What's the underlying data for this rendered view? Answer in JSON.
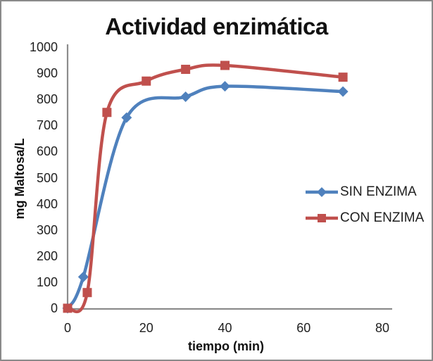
{
  "frame": {
    "background": "#FFFFFF",
    "border_color": "#8A8A8A"
  },
  "chart_data": {
    "type": "line",
    "title": "Actividad enzimática",
    "xlabel": "tiempo (min)",
    "ylabel": "mg Maltosa/L",
    "xlim": [
      0,
      80
    ],
    "ylim": [
      0,
      1000
    ],
    "x_ticks": [
      0,
      20,
      40,
      60,
      80
    ],
    "y_ticks": [
      0,
      100,
      200,
      300,
      400,
      500,
      600,
      700,
      800,
      900,
      1000
    ],
    "grid": false,
    "smooth_lines": true,
    "legend_position": "middle-right",
    "axis_color": "#8C8C8C",
    "text_color": "#1F1F1F",
    "series": [
      {
        "name": "SIN ENZIMA",
        "color": "#4F81BD",
        "marker": "diamond",
        "points": [
          [
            0,
            0
          ],
          [
            4,
            120
          ],
          [
            15,
            730
          ],
          [
            30,
            810
          ],
          [
            40,
            850
          ],
          [
            70,
            830
          ]
        ]
      },
      {
        "name": "CON ENZIMA",
        "color": "#C0504D",
        "marker": "square",
        "points": [
          [
            0,
            0
          ],
          [
            5,
            60
          ],
          [
            10,
            750
          ],
          [
            20,
            870
          ],
          [
            30,
            915
          ],
          [
            40,
            930
          ],
          [
            70,
            885
          ]
        ]
      }
    ]
  }
}
